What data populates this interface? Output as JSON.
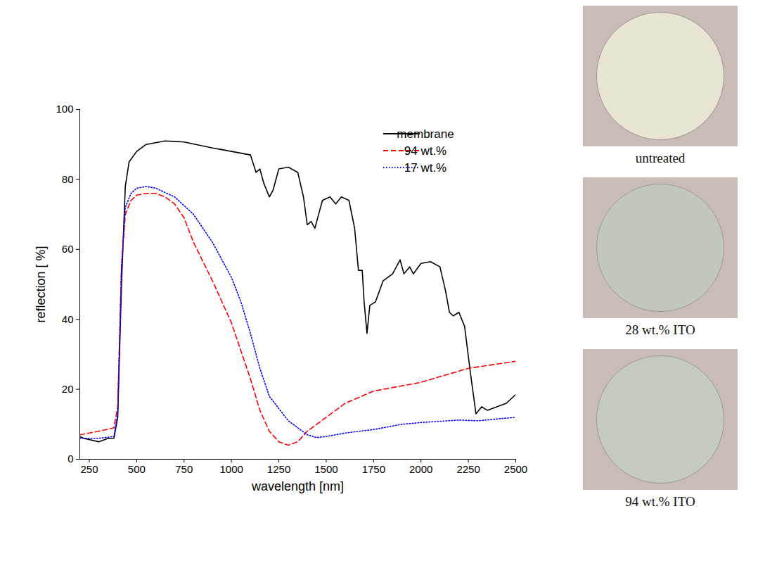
{
  "chart_data": {
    "type": "line",
    "x_label": "wavelength [nm]",
    "y_label": "reflection [ %]",
    "xlim": [
      200,
      2500
    ],
    "xticks": [
      250,
      500,
      750,
      1000,
      1250,
      1500,
      1750,
      2000,
      2250,
      2500
    ],
    "ylim": [
      0,
      100
    ],
    "yticks": [
      0,
      20,
      40,
      60,
      80,
      100
    ],
    "grid": false,
    "legend": "top-right",
    "series": [
      {
        "name": "membrane",
        "color": "#000000",
        "line_style": "solid",
        "x": [
          200,
          220,
          300,
          350,
          380,
          400,
          420,
          440,
          460,
          500,
          550,
          650,
          750,
          900,
          950,
          1000,
          1050,
          1100,
          1130,
          1150,
          1170,
          1200,
          1220,
          1250,
          1300,
          1350,
          1380,
          1400,
          1420,
          1440,
          1460,
          1480,
          1520,
          1550,
          1580,
          1620,
          1650,
          1670,
          1690,
          1700,
          1715,
          1730,
          1760,
          1800,
          1850,
          1890,
          1910,
          1940,
          1960,
          2000,
          2050,
          2100,
          2130,
          2150,
          2170,
          2200,
          2230,
          2260,
          2290,
          2320,
          2350,
          2400,
          2450,
          2500
        ],
        "values": [
          6.5,
          6,
          5,
          6,
          6,
          12,
          50,
          78,
          85,
          88,
          90,
          91,
          90.7,
          89,
          88.5,
          88,
          87.5,
          87,
          82,
          83,
          79,
          75,
          77,
          83,
          83.5,
          82,
          75,
          67,
          68,
          66,
          70,
          74,
          75,
          73,
          75,
          74,
          66,
          54,
          54,
          45,
          36,
          44,
          45,
          51,
          53,
          57,
          53,
          55,
          53,
          56,
          56.5,
          55,
          48,
          42,
          41,
          42,
          38,
          25,
          13,
          15,
          14,
          15,
          16,
          18.5
        ]
      },
      {
        "name": "94 wt.%",
        "color": "#ff0000",
        "line_style": "dashed",
        "x": [
          200,
          300,
          380,
          400,
          420,
          440,
          470,
          500,
          550,
          600,
          650,
          700,
          750,
          800,
          900,
          1000,
          1050,
          1100,
          1150,
          1200,
          1250,
          1300,
          1350,
          1400,
          1500,
          1600,
          1750,
          2000,
          2250,
          2500
        ],
        "values": [
          7,
          8,
          9,
          15,
          55,
          70,
          74,
          75.5,
          76,
          76,
          75,
          73,
          69,
          62,
          51,
          39,
          31,
          23,
          14,
          8,
          5,
          4,
          5,
          8,
          12,
          16,
          19.5,
          22,
          26,
          28
        ]
      },
      {
        "name": "17 wt.%",
        "color": "#0000ff",
        "line_style": "dotted",
        "x": [
          200,
          300,
          380,
          400,
          420,
          440,
          470,
          500,
          550,
          600,
          700,
          800,
          900,
          1000,
          1050,
          1100,
          1150,
          1200,
          1300,
          1400,
          1450,
          1500,
          1600,
          1750,
          1900,
          2000,
          2200,
          2300,
          2500
        ],
        "values": [
          6,
          6,
          6.5,
          13,
          55,
          72,
          76,
          77.5,
          78,
          77.5,
          75,
          70,
          62,
          52,
          45,
          36,
          26,
          18,
          11,
          7,
          6.2,
          6.5,
          7.5,
          8.5,
          10,
          10.5,
          11.2,
          11,
          12
        ]
      }
    ]
  },
  "photos": [
    {
      "caption": "untreated"
    },
    {
      "caption": "28 wt.% ITO"
    },
    {
      "caption": "94 wt.% ITO"
    }
  ]
}
